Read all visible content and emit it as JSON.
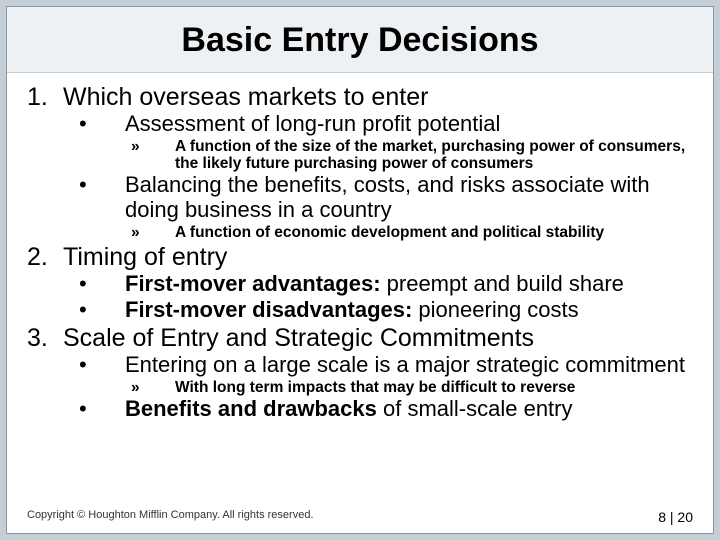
{
  "title": "Basic Entry Decisions",
  "sections": [
    {
      "num": "1.",
      "text": "Which overseas markets to enter",
      "bullets": [
        {
          "text": "Assessment of long-run profit potential",
          "sub": [
            "A function of the size of the market, purchasing power of consumers, the likely future purchasing power of consumers"
          ]
        },
        {
          "text": "Balancing the benefits, costs, and risks associate with doing business in a country",
          "sub": [
            "A function of economic development and political stability"
          ]
        }
      ]
    },
    {
      "num": "2.",
      "text": "Timing of entry",
      "bullets": [
        {
          "html": "<span class='bold'>First-mover advantages:</span> preempt and build share"
        },
        {
          "html": "<span class='bold'>First-mover disadvantages:</span> pioneering costs"
        }
      ]
    },
    {
      "num": "3.",
      "text": "Scale of Entry and Strategic Commitments",
      "bullets": [
        {
          "text": "Entering on a large scale is a  major strategic commitment",
          "sub": [
            "With long term impacts that may be difficult to reverse"
          ]
        },
        {
          "html": "<span class='bold'>Benefits and drawbacks</span> of small-scale entry"
        }
      ]
    }
  ],
  "footer": {
    "copyright": "Copyright © Houghton Mifflin Company. All rights reserved.",
    "page": "8 | 20"
  }
}
